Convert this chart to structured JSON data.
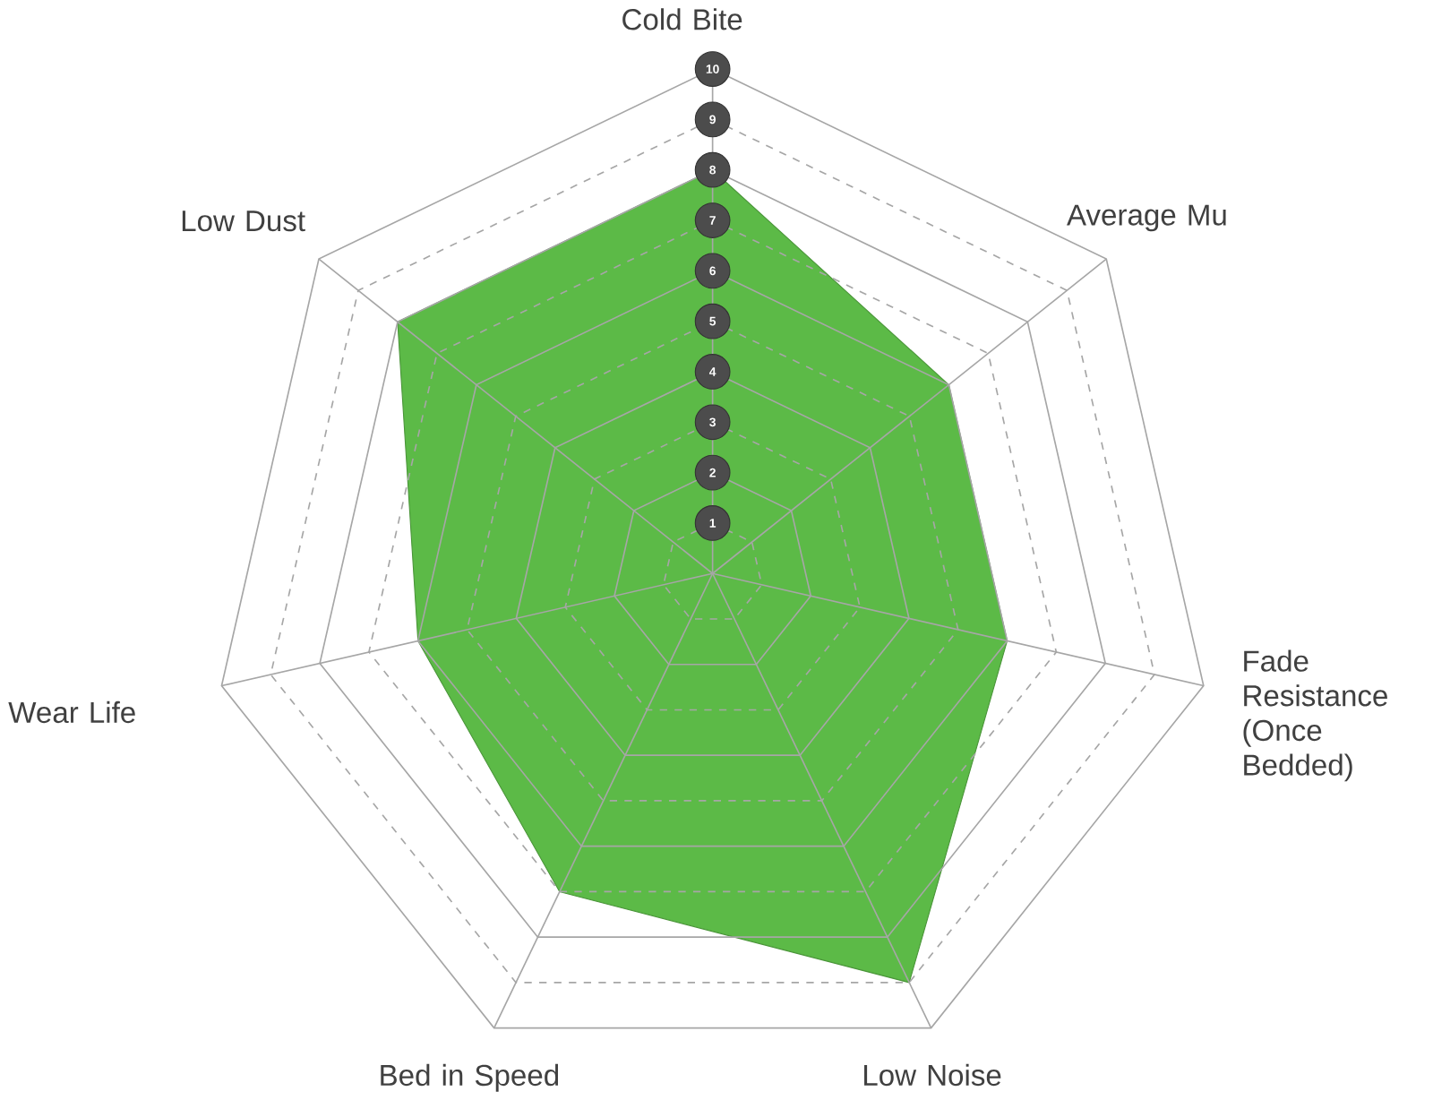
{
  "chart_data": {
    "type": "radar",
    "categories": [
      "Cold Bite",
      "Average Mu",
      "Fade Resistance (Once Bedded)",
      "Low Noise",
      "Bed in Speed",
      "Wear Life",
      "Low Dust"
    ],
    "series": [
      {
        "color": "#5cba47",
        "values": [
          8,
          6,
          6,
          9,
          7,
          6,
          8
        ]
      }
    ],
    "ylim": [
      0,
      10
    ],
    "yticks": [
      1,
      2,
      3,
      4,
      5,
      6,
      7,
      8,
      9,
      10
    ],
    "grid": true
  }
}
